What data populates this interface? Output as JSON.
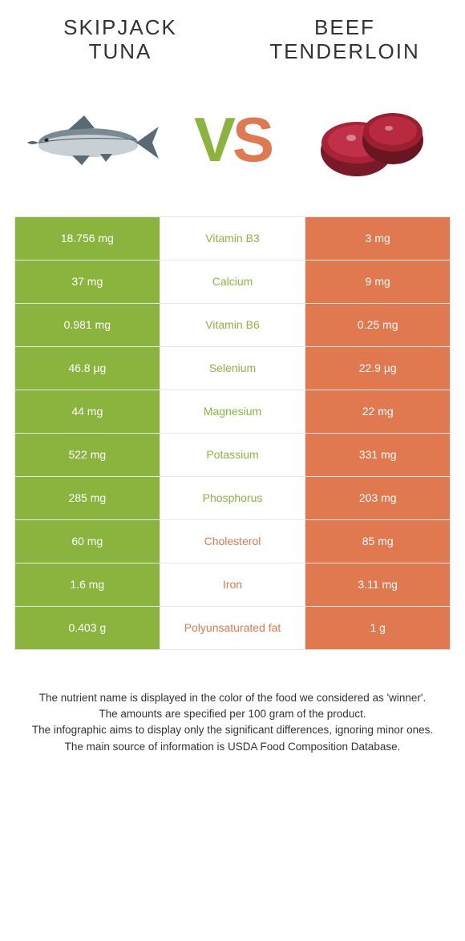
{
  "colors": {
    "green": "#8bb43f",
    "orange": "#e07850",
    "vs_green": "#8bb43f",
    "vs_orange": "#e07850"
  },
  "left": {
    "title": "Skipjack Tuna"
  },
  "right": {
    "title": "Beef Tenderloin"
  },
  "vs": {
    "v": "V",
    "s": "S"
  },
  "rows": [
    {
      "left": "18.756 mg",
      "label": "Vitamin B3",
      "right": "3 mg",
      "winner": "left"
    },
    {
      "left": "37 mg",
      "label": "Calcium",
      "right": "9 mg",
      "winner": "left"
    },
    {
      "left": "0.981 mg",
      "label": "Vitamin B6",
      "right": "0.25 mg",
      "winner": "left"
    },
    {
      "left": "46.8 µg",
      "label": "Selenium",
      "right": "22.9 µg",
      "winner": "left"
    },
    {
      "left": "44 mg",
      "label": "Magnesium",
      "right": "22 mg",
      "winner": "left"
    },
    {
      "left": "522 mg",
      "label": "Potassium",
      "right": "331 mg",
      "winner": "left"
    },
    {
      "left": "285 mg",
      "label": "Phosphorus",
      "right": "203 mg",
      "winner": "left"
    },
    {
      "left": "60 mg",
      "label": "Cholesterol",
      "right": "85 mg",
      "winner": "right"
    },
    {
      "left": "1.6 mg",
      "label": "Iron",
      "right": "3.11 mg",
      "winner": "right"
    },
    {
      "left": "0.403 g",
      "label": "Polyunsaturated fat",
      "right": "1 g",
      "winner": "right"
    }
  ],
  "footer": {
    "l1": "The nutrient name is displayed in the color of the food we considered as 'winner'.",
    "l2": "The amounts are specified per 100 gram of the product.",
    "l3": "The infographic aims to display only the significant differences, ignoring minor ones.",
    "l4": "The main source of information is USDA Food Composition Database."
  }
}
